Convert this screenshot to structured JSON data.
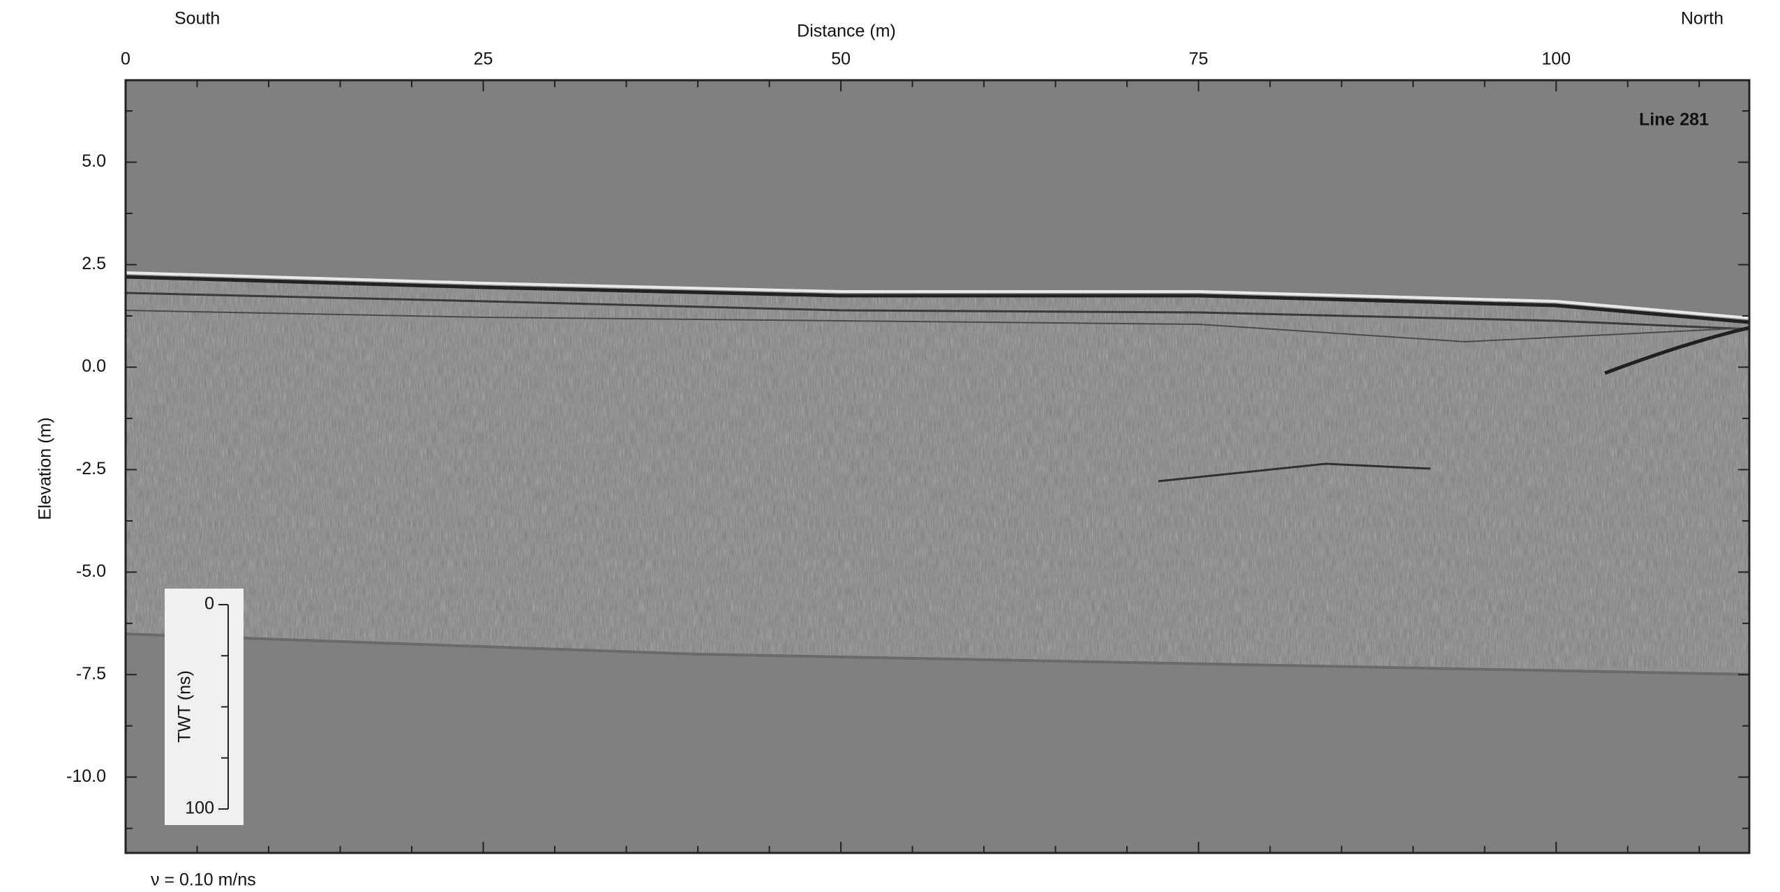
{
  "chart_data": {
    "type": "radargram",
    "title": "Line 281",
    "x_label": "Distance (m)",
    "y_label": "Elevation (m)",
    "left_end_label": "South",
    "right_end_label": "North",
    "velocity_note": "ν = 0.10 m/ns",
    "xlim": [
      0,
      113.5
    ],
    "xticks": [
      0,
      25,
      50,
      75,
      100
    ],
    "x_minor_ticks": [
      5,
      10,
      15,
      20,
      30,
      35,
      40,
      45,
      55,
      60,
      65,
      70,
      80,
      85,
      90,
      95,
      105,
      110
    ],
    "ylim": [
      -11.85,
      7.0
    ],
    "yticks": [
      {
        "value": 5,
        "label": "5.0"
      },
      {
        "value": 2.5,
        "label": "2.5"
      },
      {
        "value": 0,
        "label": "0.0"
      },
      {
        "value": -2.5,
        "label": "-2.5"
      },
      {
        "value": -5,
        "label": "-5.0"
      },
      {
        "value": -7.5,
        "label": "-7.5"
      },
      {
        "value": -10,
        "label": "-10.0"
      }
    ],
    "y_minor_ticks": [
      6.25,
      3.75,
      1.25,
      -1.25,
      -3.75,
      -6.25,
      -8.75,
      -11.25
    ],
    "twt_scale": {
      "label": "TWT (ns)",
      "ylim": [
        0,
        100
      ],
      "ticks": [
        0,
        100
      ],
      "minor_ticks": [
        25,
        50,
        75
      ]
    }
  }
}
